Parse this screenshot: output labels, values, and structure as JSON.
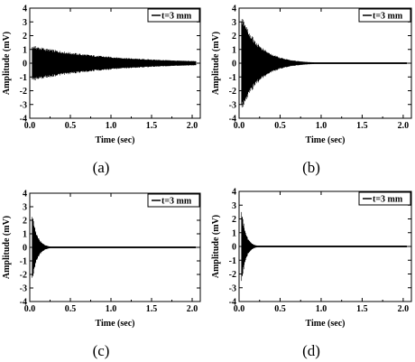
{
  "chart_data": [
    {
      "panel": "a",
      "caption": "(a)",
      "type": "line",
      "xlabel": "Time (sec)",
      "ylabel": "Amplitude (mV)",
      "xlim": [
        0,
        2.1
      ],
      "ylim": [
        -4,
        4
      ],
      "x_ticks": [
        "0.0",
        "0.5",
        "1.0",
        "1.5",
        "2.0"
      ],
      "y_ticks": [
        "4",
        "3",
        "2",
        "1",
        "0",
        "-1",
        "-2",
        "-3",
        "-4"
      ],
      "legend": {
        "label": "t=3 mm",
        "position": "top-right"
      },
      "series": [
        {
          "name": "t=3 mm",
          "envelope_peak_mV": 1.3,
          "peak_time_s": 0.03,
          "decay_time_constant_s": 0.95,
          "end_time_s": 2.05
        }
      ]
    },
    {
      "panel": "b",
      "caption": "(b)",
      "type": "line",
      "xlabel": "Time (sec)",
      "ylabel": "Amplitude (mV)",
      "xlim": [
        0,
        2.1
      ],
      "ylim": [
        -4,
        4
      ],
      "x_ticks": [
        "0.0",
        "0.5",
        "1.0",
        "1.5",
        "2.0"
      ],
      "y_ticks": [
        "4",
        "3",
        "2",
        "1",
        "0",
        "-1",
        "-2",
        "-3",
        "-4"
      ],
      "legend": {
        "label": "t=3 mm",
        "position": "top-right"
      },
      "series": [
        {
          "name": "t=3 mm",
          "envelope_peak_mV": 3.6,
          "peak_time_s": 0.03,
          "decay_time_constant_s": 0.22,
          "end_time_s": 2.05
        }
      ]
    },
    {
      "panel": "c",
      "caption": "(c)",
      "type": "line",
      "xlabel": "Time (sec)",
      "ylabel": "Amplitude (mV)",
      "xlim": [
        0,
        2.1
      ],
      "ylim": [
        -4,
        4
      ],
      "x_ticks": [
        "0.0",
        "0.5",
        "1.0",
        "1.5",
        "2.0"
      ],
      "y_ticks": [
        "4",
        "3",
        "2",
        "1",
        "0",
        "-1",
        "-2",
        "-3",
        "-4"
      ],
      "legend": {
        "label": "t=3 mm",
        "position": "top-right"
      },
      "series": [
        {
          "name": "t=3 mm",
          "envelope_peak_mV": 2.6,
          "peak_time_s": 0.03,
          "decay_time_constant_s": 0.06,
          "end_time_s": 2.05
        }
      ]
    },
    {
      "panel": "d",
      "caption": "(d)",
      "type": "line",
      "xlabel": "Time (sec)",
      "ylabel": "Amplitude (mV)",
      "xlim": [
        0,
        2.1
      ],
      "ylim": [
        -4,
        4
      ],
      "x_ticks": [
        "0.0",
        "0.5",
        "1.0",
        "1.5",
        "2.0"
      ],
      "y_ticks": [
        "4",
        "3",
        "2",
        "1",
        "0",
        "-1",
        "-2",
        "-3",
        "-4"
      ],
      "legend": {
        "label": "t=3 mm",
        "position": "top-right"
      },
      "series": [
        {
          "name": "t=3 mm",
          "envelope_peak_mV": 2.9,
          "peak_time_s": 0.03,
          "decay_time_constant_s": 0.05,
          "end_time_s": 2.05
        }
      ]
    }
  ],
  "colors": {
    "signal": "#000000",
    "axis": "#000000",
    "background": "#ffffff"
  }
}
